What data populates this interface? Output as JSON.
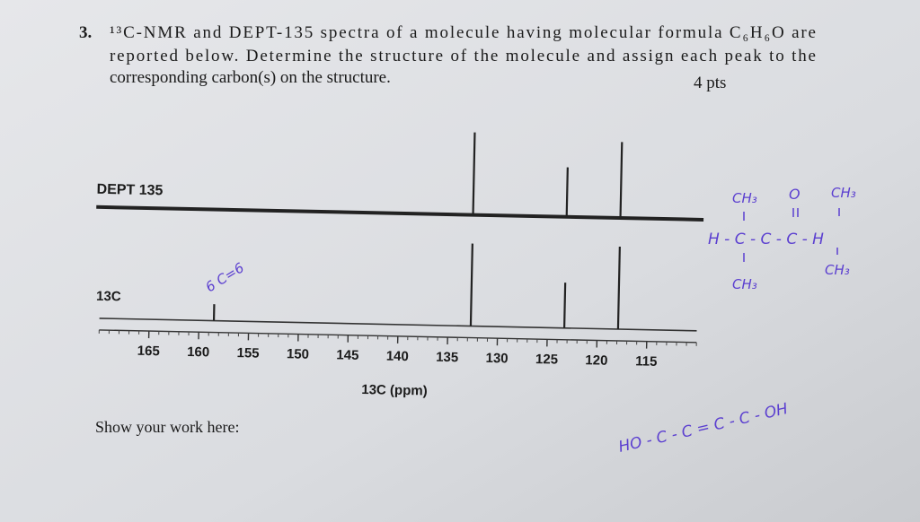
{
  "question": {
    "number": "3.",
    "lines": [
      "¹³C-NMR and DEPT-135 spectra of a molecule having molecular formula C₆H₆O are",
      "reported below. Determine the structure of the molecule and assign each peak to the",
      "corresponding carbon(s) on the structure."
    ],
    "points": "4 pts"
  },
  "spectra": {
    "dept": {
      "label": "DEPT 135",
      "peaks_ppm": [
        132.7,
        123.3,
        117.9
      ],
      "intensity": [
        100,
        60,
        92
      ]
    },
    "c13": {
      "label": "13C",
      "peaks_ppm": [
        158.5,
        132.7,
        123.3,
        117.9
      ],
      "intensity": [
        20,
        100,
        55,
        100
      ]
    },
    "axis": {
      "title": "13C (ppm)",
      "xlim": [
        170,
        110
      ],
      "ticks": [
        165,
        160,
        155,
        150,
        145,
        140,
        135,
        130,
        125,
        120,
        115
      ]
    }
  },
  "work_prompt": "Show your work here:",
  "handwriting": {
    "top_left_ch3": "CH₃",
    "carbonyl_o": "O",
    "top_right_ch3": "CH₃",
    "chain": "H - C - C - C - H",
    "bottom_left_ch3": "CH₃",
    "bottom_right_ch3": "CH₃",
    "peak_note": "6 C=6",
    "second_structure": "HO - C - C = C - C - OH"
  }
}
